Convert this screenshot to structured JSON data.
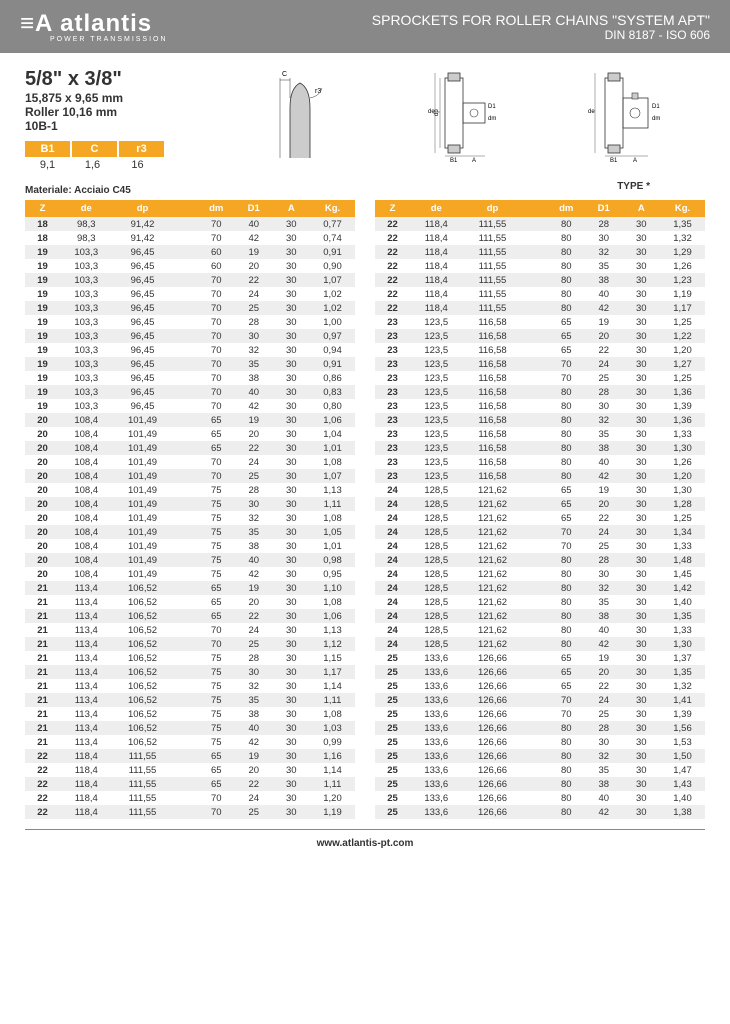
{
  "header": {
    "logo": "atlantis",
    "logo_sub": "POWER TRANSMISSION",
    "title": "SPROCKETS FOR ROLLER CHAINS \"SYSTEM APT\"",
    "subtitle": "DIN 8187 - ISO 606"
  },
  "specs": {
    "main": "5/8\" x 3/8\"",
    "mm": "15,875 x 9,65 mm",
    "roller": "Roller 10,16 mm",
    "code": "10B-1"
  },
  "small_table": {
    "headers": [
      "B1",
      "C",
      "r3"
    ],
    "values": [
      "9,1",
      "1,6",
      "16"
    ]
  },
  "material_label": "Materiale: Acciaio C45",
  "type_label": "TYPE *",
  "columns": [
    "Z",
    "de",
    "dp",
    "",
    "dm",
    "D1",
    "A",
    "Kg."
  ],
  "left_rows": [
    [
      "18",
      "98,3",
      "91,42",
      "",
      "70",
      "40",
      "30",
      "0,77"
    ],
    [
      "18",
      "98,3",
      "91,42",
      "",
      "70",
      "42",
      "30",
      "0,74"
    ],
    [
      "19",
      "103,3",
      "96,45",
      "",
      "60",
      "19",
      "30",
      "0,91"
    ],
    [
      "19",
      "103,3",
      "96,45",
      "",
      "60",
      "20",
      "30",
      "0,90"
    ],
    [
      "19",
      "103,3",
      "96,45",
      "",
      "70",
      "22",
      "30",
      "1,07"
    ],
    [
      "19",
      "103,3",
      "96,45",
      "",
      "70",
      "24",
      "30",
      "1,02"
    ],
    [
      "19",
      "103,3",
      "96,45",
      "",
      "70",
      "25",
      "30",
      "1,02"
    ],
    [
      "19",
      "103,3",
      "96,45",
      "",
      "70",
      "28",
      "30",
      "1,00"
    ],
    [
      "19",
      "103,3",
      "96,45",
      "",
      "70",
      "30",
      "30",
      "0,97"
    ],
    [
      "19",
      "103,3",
      "96,45",
      "",
      "70",
      "32",
      "30",
      "0,94"
    ],
    [
      "19",
      "103,3",
      "96,45",
      "",
      "70",
      "35",
      "30",
      "0,91"
    ],
    [
      "19",
      "103,3",
      "96,45",
      "",
      "70",
      "38",
      "30",
      "0,86"
    ],
    [
      "19",
      "103,3",
      "96,45",
      "",
      "70",
      "40",
      "30",
      "0,83"
    ],
    [
      "19",
      "103,3",
      "96,45",
      "",
      "70",
      "42",
      "30",
      "0,80"
    ],
    [
      "20",
      "108,4",
      "101,49",
      "",
      "65",
      "19",
      "30",
      "1,06"
    ],
    [
      "20",
      "108,4",
      "101,49",
      "",
      "65",
      "20",
      "30",
      "1,04"
    ],
    [
      "20",
      "108,4",
      "101,49",
      "",
      "65",
      "22",
      "30",
      "1,01"
    ],
    [
      "20",
      "108,4",
      "101,49",
      "",
      "70",
      "24",
      "30",
      "1,08"
    ],
    [
      "20",
      "108,4",
      "101,49",
      "",
      "70",
      "25",
      "30",
      "1,07"
    ],
    [
      "20",
      "108,4",
      "101,49",
      "",
      "75",
      "28",
      "30",
      "1,13"
    ],
    [
      "20",
      "108,4",
      "101,49",
      "",
      "75",
      "30",
      "30",
      "1,11"
    ],
    [
      "20",
      "108,4",
      "101,49",
      "",
      "75",
      "32",
      "30",
      "1,08"
    ],
    [
      "20",
      "108,4",
      "101,49",
      "",
      "75",
      "35",
      "30",
      "1,05"
    ],
    [
      "20",
      "108,4",
      "101,49",
      "",
      "75",
      "38",
      "30",
      "1,01"
    ],
    [
      "20",
      "108,4",
      "101,49",
      "",
      "75",
      "40",
      "30",
      "0,98"
    ],
    [
      "20",
      "108,4",
      "101,49",
      "",
      "75",
      "42",
      "30",
      "0,95"
    ],
    [
      "21",
      "113,4",
      "106,52",
      "",
      "65",
      "19",
      "30",
      "1,10"
    ],
    [
      "21",
      "113,4",
      "106,52",
      "",
      "65",
      "20",
      "30",
      "1,08"
    ],
    [
      "21",
      "113,4",
      "106,52",
      "",
      "65",
      "22",
      "30",
      "1,06"
    ],
    [
      "21",
      "113,4",
      "106,52",
      "",
      "70",
      "24",
      "30",
      "1,13"
    ],
    [
      "21",
      "113,4",
      "106,52",
      "",
      "70",
      "25",
      "30",
      "1,12"
    ],
    [
      "21",
      "113,4",
      "106,52",
      "",
      "75",
      "28",
      "30",
      "1,15"
    ],
    [
      "21",
      "113,4",
      "106,52",
      "",
      "75",
      "30",
      "30",
      "1,17"
    ],
    [
      "21",
      "113,4",
      "106,52",
      "",
      "75",
      "32",
      "30",
      "1,14"
    ],
    [
      "21",
      "113,4",
      "106,52",
      "",
      "75",
      "35",
      "30",
      "1,11"
    ],
    [
      "21",
      "113,4",
      "106,52",
      "",
      "75",
      "38",
      "30",
      "1,08"
    ],
    [
      "21",
      "113,4",
      "106,52",
      "",
      "75",
      "40",
      "30",
      "1,03"
    ],
    [
      "21",
      "113,4",
      "106,52",
      "",
      "75",
      "42",
      "30",
      "0,99"
    ],
    [
      "22",
      "118,4",
      "111,55",
      "",
      "65",
      "19",
      "30",
      "1,16"
    ],
    [
      "22",
      "118,4",
      "111,55",
      "",
      "65",
      "20",
      "30",
      "1,14"
    ],
    [
      "22",
      "118,4",
      "111,55",
      "",
      "65",
      "22",
      "30",
      "1,11"
    ],
    [
      "22",
      "118,4",
      "111,55",
      "",
      "70",
      "24",
      "30",
      "1,20"
    ],
    [
      "22",
      "118,4",
      "111,55",
      "",
      "70",
      "25",
      "30",
      "1,19"
    ]
  ],
  "right_rows": [
    [
      "22",
      "118,4",
      "111,55",
      "",
      "80",
      "28",
      "30",
      "1,35"
    ],
    [
      "22",
      "118,4",
      "111,55",
      "",
      "80",
      "30",
      "30",
      "1,32"
    ],
    [
      "22",
      "118,4",
      "111,55",
      "",
      "80",
      "32",
      "30",
      "1,29"
    ],
    [
      "22",
      "118,4",
      "111,55",
      "",
      "80",
      "35",
      "30",
      "1,26"
    ],
    [
      "22",
      "118,4",
      "111,55",
      "",
      "80",
      "38",
      "30",
      "1,23"
    ],
    [
      "22",
      "118,4",
      "111,55",
      "",
      "80",
      "40",
      "30",
      "1,19"
    ],
    [
      "22",
      "118,4",
      "111,55",
      "",
      "80",
      "42",
      "30",
      "1,17"
    ],
    [
      "23",
      "123,5",
      "116,58",
      "",
      "65",
      "19",
      "30",
      "1,25"
    ],
    [
      "23",
      "123,5",
      "116,58",
      "",
      "65",
      "20",
      "30",
      "1,22"
    ],
    [
      "23",
      "123,5",
      "116,58",
      "",
      "65",
      "22",
      "30",
      "1,20"
    ],
    [
      "23",
      "123,5",
      "116,58",
      "",
      "70",
      "24",
      "30",
      "1,27"
    ],
    [
      "23",
      "123,5",
      "116,58",
      "",
      "70",
      "25",
      "30",
      "1,25"
    ],
    [
      "23",
      "123,5",
      "116,58",
      "",
      "80",
      "28",
      "30",
      "1,36"
    ],
    [
      "23",
      "123,5",
      "116,58",
      "",
      "80",
      "30",
      "30",
      "1,39"
    ],
    [
      "23",
      "123,5",
      "116,58",
      "",
      "80",
      "32",
      "30",
      "1,36"
    ],
    [
      "23",
      "123,5",
      "116,58",
      "",
      "80",
      "35",
      "30",
      "1,33"
    ],
    [
      "23",
      "123,5",
      "116,58",
      "",
      "80",
      "38",
      "30",
      "1,30"
    ],
    [
      "23",
      "123,5",
      "116,58",
      "",
      "80",
      "40",
      "30",
      "1,26"
    ],
    [
      "23",
      "123,5",
      "116,58",
      "",
      "80",
      "42",
      "30",
      "1,20"
    ],
    [
      "24",
      "128,5",
      "121,62",
      "",
      "65",
      "19",
      "30",
      "1,30"
    ],
    [
      "24",
      "128,5",
      "121,62",
      "",
      "65",
      "20",
      "30",
      "1,28"
    ],
    [
      "24",
      "128,5",
      "121,62",
      "",
      "65",
      "22",
      "30",
      "1,25"
    ],
    [
      "24",
      "128,5",
      "121,62",
      "",
      "70",
      "24",
      "30",
      "1,34"
    ],
    [
      "24",
      "128,5",
      "121,62",
      "",
      "70",
      "25",
      "30",
      "1,33"
    ],
    [
      "24",
      "128,5",
      "121,62",
      "",
      "80",
      "28",
      "30",
      "1,48"
    ],
    [
      "24",
      "128,5",
      "121,62",
      "",
      "80",
      "30",
      "30",
      "1,45"
    ],
    [
      "24",
      "128,5",
      "121,62",
      "",
      "80",
      "32",
      "30",
      "1,42"
    ],
    [
      "24",
      "128,5",
      "121,62",
      "",
      "80",
      "35",
      "30",
      "1,40"
    ],
    [
      "24",
      "128,5",
      "121,62",
      "",
      "80",
      "38",
      "30",
      "1,35"
    ],
    [
      "24",
      "128,5",
      "121,62",
      "",
      "80",
      "40",
      "30",
      "1,33"
    ],
    [
      "24",
      "128,5",
      "121,62",
      "",
      "80",
      "42",
      "30",
      "1,30"
    ],
    [
      "25",
      "133,6",
      "126,66",
      "",
      "65",
      "19",
      "30",
      "1,37"
    ],
    [
      "25",
      "133,6",
      "126,66",
      "",
      "65",
      "20",
      "30",
      "1,35"
    ],
    [
      "25",
      "133,6",
      "126,66",
      "",
      "65",
      "22",
      "30",
      "1,32"
    ],
    [
      "25",
      "133,6",
      "126,66",
      "",
      "70",
      "24",
      "30",
      "1,41"
    ],
    [
      "25",
      "133,6",
      "126,66",
      "",
      "70",
      "25",
      "30",
      "1,39"
    ],
    [
      "25",
      "133,6",
      "126,66",
      "",
      "80",
      "28",
      "30",
      "1,56"
    ],
    [
      "25",
      "133,6",
      "126,66",
      "",
      "80",
      "30",
      "30",
      "1,53"
    ],
    [
      "25",
      "133,6",
      "126,66",
      "",
      "80",
      "32",
      "30",
      "1,50"
    ],
    [
      "25",
      "133,6",
      "126,66",
      "",
      "80",
      "35",
      "30",
      "1,47"
    ],
    [
      "25",
      "133,6",
      "126,66",
      "",
      "80",
      "38",
      "30",
      "1,43"
    ],
    [
      "25",
      "133,6",
      "126,66",
      "",
      "80",
      "40",
      "30",
      "1,40"
    ],
    [
      "25",
      "133,6",
      "126,66",
      "",
      "80",
      "42",
      "30",
      "1,38"
    ]
  ],
  "footer": "www.atlantis-pt.com"
}
